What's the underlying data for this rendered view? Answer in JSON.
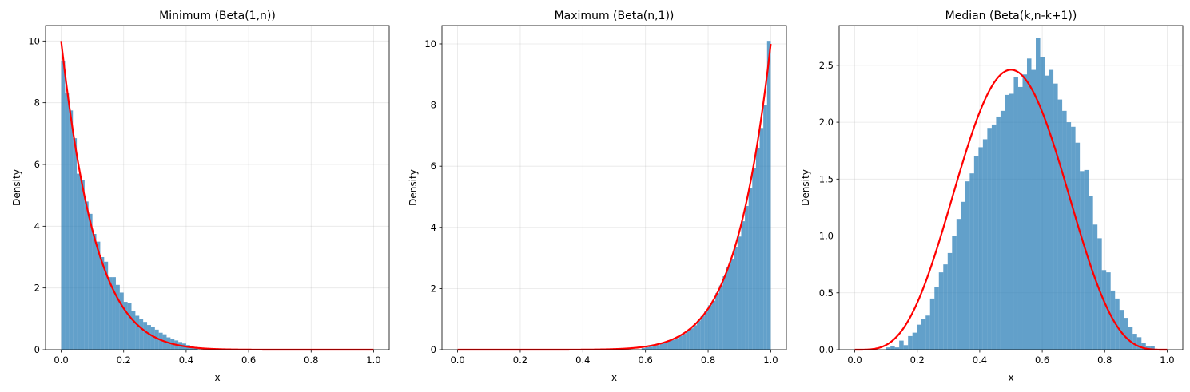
{
  "chart_data": [
    {
      "type": "histogram",
      "title": "Minimum (Beta(1,n))",
      "xlabel": "x",
      "ylabel": "Density",
      "xlim": [
        -0.05,
        1.05
      ],
      "ylim": [
        0,
        10.5
      ],
      "xticks": [
        "0.0",
        "0.2",
        "0.4",
        "0.6",
        "0.8",
        "1.0"
      ],
      "xtick_values": [
        0,
        0.2,
        0.4,
        0.6,
        0.8,
        1.0
      ],
      "yticks": [
        "0",
        "2",
        "4",
        "6",
        "8",
        "10"
      ],
      "ytick_values": [
        0,
        2,
        4,
        6,
        8,
        10
      ],
      "grid": true,
      "hist_color": "#1f77b4",
      "hist_alpha": 0.7,
      "curve_color": "#ff0000",
      "bin_range": [
        0,
        0.4375
      ],
      "bin_values": [
        9.35,
        8.3,
        7.75,
        6.85,
        5.7,
        5.5,
        4.8,
        4.4,
        3.75,
        3.5,
        3.0,
        2.85,
        2.35,
        2.35,
        2.1,
        1.85,
        1.55,
        1.5,
        1.25,
        1.1,
        1.0,
        0.9,
        0.8,
        0.75,
        0.65,
        0.55,
        0.5,
        0.4,
        0.35,
        0.3,
        0.25,
        0.2,
        0.15,
        0.1,
        0.08
      ],
      "curve": {
        "kind": "beta",
        "a": 1,
        "b": 10,
        "x": [
          0,
          1
        ]
      }
    },
    {
      "type": "histogram",
      "title": "Maximum (Beta(n,1))",
      "xlabel": "x",
      "ylabel": "Density",
      "xlim": [
        -0.05,
        1.05
      ],
      "ylim": [
        0,
        10.6
      ],
      "xticks": [
        "0.0",
        "0.2",
        "0.4",
        "0.6",
        "0.8",
        "1.0"
      ],
      "xtick_values": [
        0,
        0.2,
        0.4,
        0.6,
        0.8,
        1.0
      ],
      "yticks": [
        "0",
        "2",
        "4",
        "6",
        "8",
        "10"
      ],
      "ytick_values": [
        0,
        2,
        4,
        6,
        8,
        10
      ],
      "grid": true,
      "hist_color": "#1f77b4",
      "hist_alpha": 0.7,
      "curve_color": "#ff0000",
      "bin_range": [
        0.5875,
        1.0
      ],
      "bin_values": [
        0.05,
        0.08,
        0.1,
        0.12,
        0.15,
        0.2,
        0.22,
        0.28,
        0.32,
        0.38,
        0.45,
        0.52,
        0.6,
        0.7,
        0.8,
        0.95,
        1.1,
        1.25,
        1.45,
        1.6,
        1.85,
        2.1,
        2.4,
        2.7,
        2.95,
        3.35,
        3.7,
        4.2,
        4.7,
        5.3,
        5.95,
        6.6,
        7.25,
        8.0,
        10.1
      ],
      "curve": {
        "kind": "beta",
        "a": 10,
        "b": 1,
        "x": [
          0,
          1
        ]
      }
    },
    {
      "type": "histogram",
      "title": "Median (Beta(k,n-k+1))",
      "xlabel": "x",
      "ylabel": "Density",
      "xlim": [
        -0.05,
        1.05
      ],
      "ylim": [
        0,
        2.85
      ],
      "xticks": [
        "0.0",
        "0.2",
        "0.4",
        "0.6",
        "0.8",
        "1.0"
      ],
      "xtick_values": [
        0,
        0.2,
        0.4,
        0.6,
        0.8,
        1.0
      ],
      "yticks": [
        "0.0",
        "0.5",
        "1.0",
        "1.5",
        "2.0",
        "2.5"
      ],
      "ytick_values": [
        0,
        0.5,
        1.0,
        1.5,
        2.0,
        2.5
      ],
      "grid": true,
      "hist_color": "#1f77b4",
      "hist_alpha": 0.7,
      "curve_color": "#ff0000",
      "bin_range": [
        0.1,
        0.96
      ],
      "bin_values": [
        0.02,
        0.03,
        0.02,
        0.08,
        0.04,
        0.12,
        0.15,
        0.22,
        0.27,
        0.3,
        0.45,
        0.55,
        0.68,
        0.75,
        0.85,
        1.0,
        1.15,
        1.3,
        1.48,
        1.55,
        1.7,
        1.78,
        1.85,
        1.95,
        1.98,
        2.05,
        2.1,
        2.24,
        2.25,
        2.4,
        2.31,
        2.42,
        2.56,
        2.46,
        2.74,
        2.57,
        2.41,
        2.46,
        2.34,
        2.2,
        2.1,
        2.0,
        1.96,
        1.82,
        1.57,
        1.58,
        1.35,
        1.1,
        0.98,
        0.7,
        0.68,
        0.52,
        0.45,
        0.35,
        0.28,
        0.2,
        0.14,
        0.11,
        0.06,
        0.03,
        0.03
      ],
      "curve": {
        "kind": "beta",
        "a": 5,
        "b": 5,
        "x": [
          0,
          1
        ]
      }
    }
  ]
}
